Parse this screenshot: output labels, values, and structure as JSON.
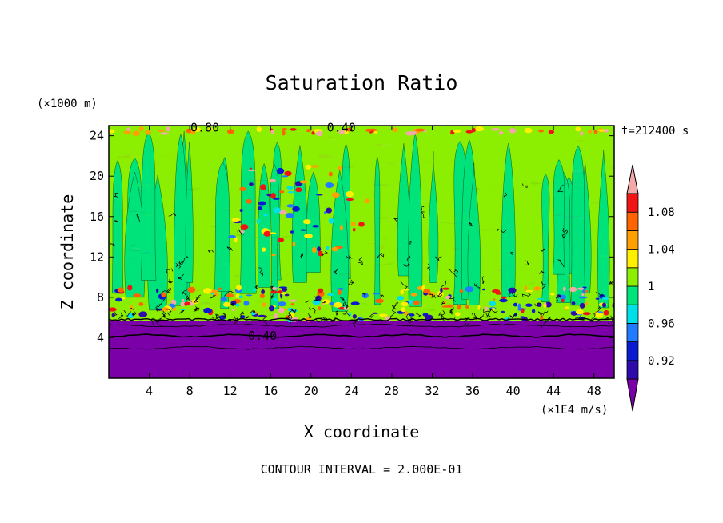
{
  "chart_data": {
    "type": "heatmap",
    "title": "Saturation Ratio",
    "xlabel": "X coordinate",
    "ylabel": "Z coordinate",
    "x_unit": "(×1E4 m/s)",
    "y_unit": "(×1000 m)",
    "time_label": "t=212400 s",
    "footer": "CONTOUR INTERVAL = 2.000E-01",
    "xlim": [
      0,
      50
    ],
    "ylim": [
      0,
      25
    ],
    "xticks": [
      4,
      8,
      12,
      16,
      20,
      24,
      28,
      32,
      36,
      40,
      44,
      48
    ],
    "yticks": [
      4,
      8,
      12,
      16,
      20,
      24
    ],
    "contour_labels": [
      {
        "text": "0.40",
        "x": 15.2,
        "y": 4.2
      },
      {
        "text": "0.80",
        "x": 9.5,
        "y": 24.8
      },
      {
        "text": "0.40",
        "x": 23.0,
        "y": 24.8
      }
    ],
    "colorbar": {
      "levels": [
        0.9,
        0.92,
        0.94,
        0.96,
        0.98,
        1.0,
        1.02,
        1.04,
        1.06,
        1.08,
        1.1
      ],
      "labels": [
        "0.92",
        "0.96",
        "1",
        "1.04",
        "1.08"
      ],
      "colors": [
        "#7b00a8",
        "#2e0aa8",
        "#0a1ad0",
        "#1f7bff",
        "#00e0e8",
        "#00e37a",
        "#8cee00",
        "#ffef00",
        "#ffa000",
        "#ff6400",
        "#f01414",
        "#f4a9a9"
      ]
    },
    "layers": [
      {
        "z_min": 0,
        "z_max": 5.8,
        "value": "< 0.90"
      },
      {
        "z_min": 5.8,
        "z_max": 24.6,
        "value": "0.98 – 1.02"
      }
    ]
  }
}
